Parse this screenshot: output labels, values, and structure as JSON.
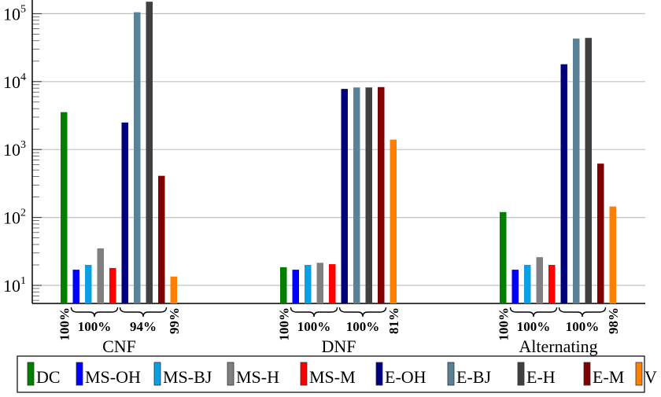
{
  "chart_data": {
    "type": "bar",
    "title": "",
    "xlabel": "",
    "ylabel": "",
    "yscale": "log",
    "ylim": [
      5,
      160000
    ],
    "grid": true,
    "y_ticks": [
      {
        "base": "10",
        "exp": "1",
        "value": 10
      },
      {
        "base": "10",
        "exp": "2",
        "value": 100
      },
      {
        "base": "10",
        "exp": "3",
        "value": 1000
      },
      {
        "base": "10",
        "exp": "4",
        "value": 10000
      },
      {
        "base": "10",
        "exp": "5",
        "value": 100000
      }
    ],
    "categories": [
      "CNF",
      "DNF",
      "Alternating"
    ],
    "series": [
      {
        "name": "DC",
        "color": "#007f00",
        "values": [
          3550,
          18.5,
          120
        ]
      },
      {
        "name": "MS-OH",
        "color": "#0000ff",
        "values": [
          17,
          17,
          17
        ]
      },
      {
        "name": "MS-BJ",
        "color": "#0aa0e6",
        "values": [
          20,
          20,
          20
        ]
      },
      {
        "name": "MS-H",
        "color": "#808080",
        "values": [
          35,
          21.5,
          26
        ]
      },
      {
        "name": "MS-M",
        "color": "#ff0000",
        "values": [
          18,
          20.5,
          20
        ]
      },
      {
        "name": "E-OH",
        "color": "#00007f",
        "values": [
          2500,
          7800,
          18000
        ]
      },
      {
        "name": "E-BJ",
        "color": "#5a8296",
        "values": [
          105000,
          8200,
          43000
        ]
      },
      {
        "name": "E-H",
        "color": "#404040",
        "values": [
          150000,
          8200,
          44000
        ]
      },
      {
        "name": "E-M",
        "color": "#7f0000",
        "values": [
          410,
          8300,
          620
        ]
      },
      {
        "name": "V",
        "color": "#ff8000",
        "values": [
          13.5,
          1400,
          145
        ]
      }
    ],
    "annotations": [
      {
        "category": "CNF",
        "labels": [
          {
            "text": "100%",
            "covers": [
              "DC"
            ],
            "rotated": true
          },
          {
            "text": "100%",
            "covers": [
              "MS-OH",
              "MS-BJ",
              "MS-H",
              "MS-M"
            ],
            "brace": true
          },
          {
            "text": "94%",
            "covers": [
              "E-OH",
              "E-BJ",
              "E-H",
              "E-M"
            ],
            "brace": true
          },
          {
            "text": "99%",
            "covers": [
              "V"
            ],
            "rotated": true
          }
        ]
      },
      {
        "category": "DNF",
        "labels": [
          {
            "text": "100%",
            "covers": [
              "DC"
            ],
            "rotated": true
          },
          {
            "text": "100%",
            "covers": [
              "MS-OH",
              "MS-BJ",
              "MS-H",
              "MS-M"
            ],
            "brace": true
          },
          {
            "text": "100%",
            "covers": [
              "E-OH",
              "E-BJ",
              "E-H",
              "E-M"
            ],
            "brace": true
          },
          {
            "text": "81%",
            "covers": [
              "V"
            ],
            "rotated": true
          }
        ]
      },
      {
        "category": "Alternating",
        "labels": [
          {
            "text": "100%",
            "covers": [
              "DC"
            ],
            "rotated": true
          },
          {
            "text": "100%",
            "covers": [
              "MS-OH",
              "MS-BJ",
              "MS-H",
              "MS-M"
            ],
            "brace": true
          },
          {
            "text": "100%",
            "covers": [
              "E-OH",
              "E-BJ",
              "E-H",
              "E-M"
            ],
            "brace": true
          },
          {
            "text": "98%",
            "covers": [
              "V"
            ],
            "rotated": true
          }
        ]
      }
    ],
    "legend": {
      "position": "bottom",
      "entries": [
        "DC",
        "MS-OH",
        "MS-BJ",
        "MS-H",
        "MS-M",
        "E-OH",
        "E-BJ",
        "E-H",
        "E-M",
        "V"
      ]
    }
  }
}
